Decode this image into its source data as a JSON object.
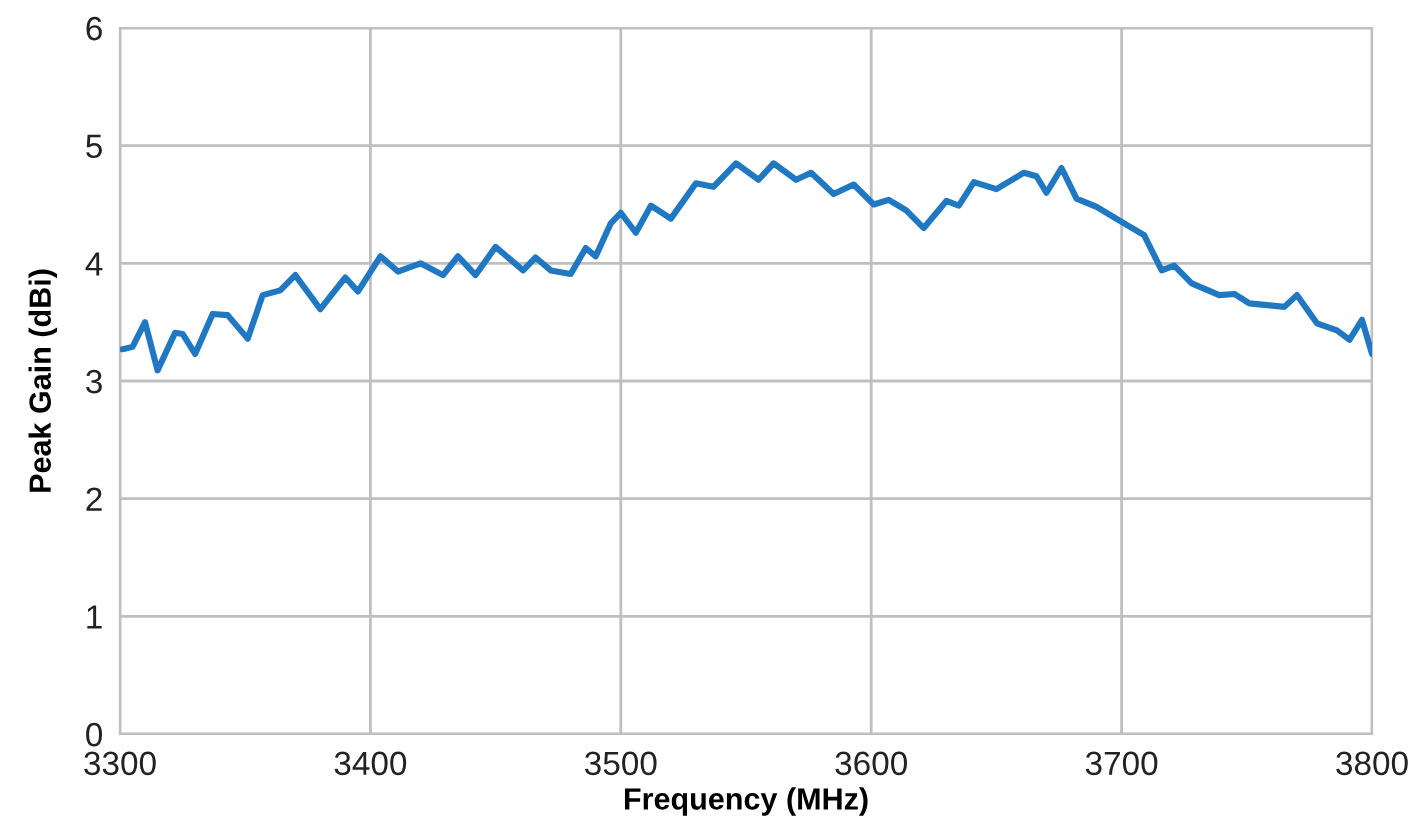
{
  "chart_data": {
    "type": "line",
    "xlabel": "Frequency (MHz)",
    "ylabel": "Peak Gain (dBi)",
    "xlim": [
      3300,
      3800
    ],
    "xticks": [
      3300,
      3400,
      3500,
      3600,
      3700,
      3800
    ],
    "ylim": [
      0,
      6
    ],
    "yticks": [
      0,
      1,
      2,
      3,
      4,
      5,
      6
    ],
    "grid": true,
    "marker": "none",
    "line_style": "solid",
    "series": [
      {
        "color": "#1f78c1",
        "x": [
          3301,
          3305,
          3310,
          3315,
          3322,
          3325,
          3330,
          3337,
          3343,
          3351,
          3357,
          3364,
          3370,
          3380,
          3390,
          3395,
          3404,
          3411,
          3420,
          3429,
          3435,
          3442,
          3450,
          3461,
          3466,
          3472,
          3480,
          3486,
          3490,
          3496,
          3500,
          3506,
          3512,
          3520,
          3530,
          3537,
          3546,
          3555,
          3561,
          3570,
          3576,
          3585,
          3593,
          3601,
          3607,
          3614,
          3621,
          3630,
          3635,
          3641,
          3650,
          3661,
          3666,
          3670,
          3676,
          3682,
          3690,
          3701,
          3709,
          3716,
          3721,
          3728,
          3739,
          3745,
          3751,
          3765,
          3770,
          3778,
          3786,
          3791,
          3796,
          3800
        ],
        "values": [
          3.27,
          3.29,
          3.5,
          3.09,
          3.41,
          3.4,
          3.23,
          3.57,
          3.56,
          3.36,
          3.73,
          3.77,
          3.9,
          3.61,
          3.88,
          3.76,
          4.06,
          3.93,
          4.0,
          3.9,
          4.06,
          3.9,
          4.14,
          3.94,
          4.05,
          3.94,
          3.91,
          4.13,
          4.06,
          4.34,
          4.43,
          4.26,
          4.49,
          4.38,
          4.68,
          4.65,
          4.85,
          4.71,
          4.85,
          4.71,
          4.77,
          4.59,
          4.67,
          4.5,
          4.54,
          4.45,
          4.3,
          4.53,
          4.49,
          4.69,
          4.63,
          4.77,
          4.74,
          4.6,
          4.81,
          4.55,
          4.48,
          4.34,
          4.24,
          3.94,
          3.98,
          3.83,
          3.73,
          3.74,
          3.66,
          3.63,
          3.73,
          3.49,
          3.43,
          3.35,
          3.52,
          3.23
        ]
      }
    ]
  }
}
